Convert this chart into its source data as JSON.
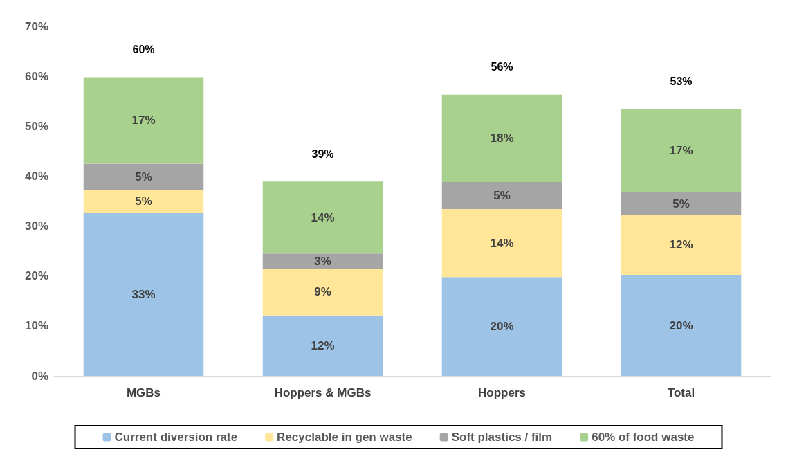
{
  "chart_data": {
    "type": "bar",
    "stacked": true,
    "categories": [
      "MGBs",
      "Hoppers & MGBs",
      "Hoppers",
      "Total"
    ],
    "series": [
      {
        "name": "Current diversion rate",
        "color": "#9dc3e6",
        "values": [
          32.7,
          12.1,
          19.8,
          20.2
        ],
        "value_labels": [
          "33%",
          "12%",
          "20%",
          "20%"
        ]
      },
      {
        "name": "Recyclable in gen waste",
        "color": "#ffe699",
        "values": [
          4.6,
          9.4,
          13.6,
          12.0
        ],
        "value_labels": [
          "5%",
          "9%",
          "14%",
          "12%"
        ]
      },
      {
        "name": "Soft plastics / film",
        "color": "#a5a5a5",
        "values": [
          5.2,
          3.0,
          5.4,
          4.6
        ],
        "value_labels": [
          "5%",
          "3%",
          "5%",
          "5%"
        ]
      },
      {
        "name": "60% of food waste",
        "color": "#a9d18e",
        "values": [
          17.3,
          14.4,
          17.5,
          16.6
        ],
        "value_labels": [
          "17%",
          "14%",
          "18%",
          "17%"
        ]
      }
    ],
    "totals": [
      "60%",
      "39%",
      "56%",
      "53%"
    ],
    "ylim": [
      0,
      70
    ],
    "yticks": [
      {
        "value": 0,
        "label": "0%"
      },
      {
        "value": 10,
        "label": "10%"
      },
      {
        "value": 20,
        "label": "20%"
      },
      {
        "value": 30,
        "label": "30%"
      },
      {
        "value": 40,
        "label": "40%"
      },
      {
        "value": 50,
        "label": "50%"
      },
      {
        "value": 60,
        "label": "60%"
      },
      {
        "value": 70,
        "label": "70%"
      }
    ],
    "grid": false,
    "legend": "bottom"
  }
}
